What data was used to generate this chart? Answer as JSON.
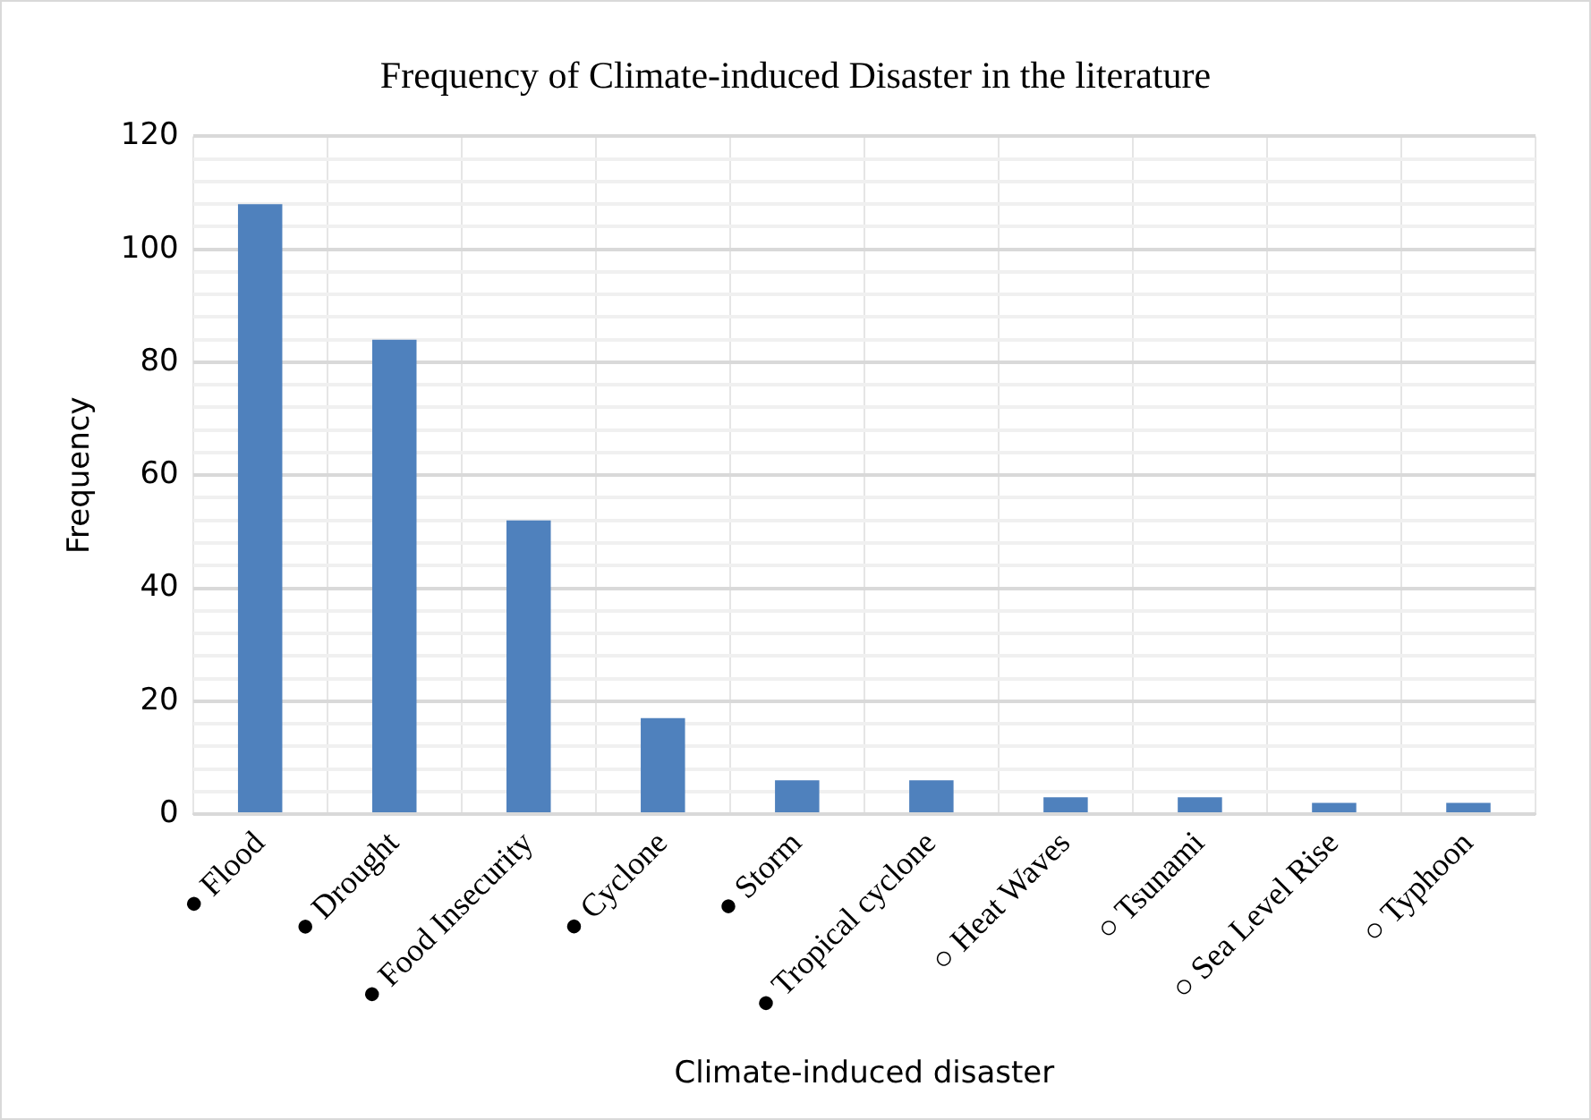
{
  "chart_data": {
    "type": "bar",
    "title": "Frequency of Climate-induced Disaster in the literature",
    "xlabel": "Climate-induced disaster",
    "ylabel": "Frequency",
    "categories": [
      "● Flood",
      "● Drought",
      "● Food Insecurity",
      "● Cyclone",
      "● Storm",
      "● Tropical cyclone",
      "○ Heat Waves",
      "○ Tsunami",
      "○ Sea Level Rise",
      "○ Typhoon"
    ],
    "values": [
      108,
      84,
      52,
      17,
      6,
      6,
      3,
      3,
      2,
      2
    ],
    "color": "#4f81bd",
    "ylim": [
      0,
      120
    ],
    "yticks": [
      0,
      {
        "value": 4,
        "label": null
      },
      {
        "value": 8,
        "label": null
      },
      {
        "value": 12,
        "label": null
      },
      {
        "value": 16,
        "label": null
      },
      20,
      {
        "value": 24,
        "label": null
      },
      {
        "value": 28,
        "label": null
      },
      {
        "value": 32,
        "label": null
      },
      {
        "value": 36,
        "label": null
      },
      40,
      {
        "value": 44,
        "label": null
      },
      {
        "value": 48,
        "label": null
      },
      {
        "value": 52,
        "label": null
      },
      {
        "value": 56,
        "label": null
      },
      60,
      {
        "value": 64,
        "label": null
      },
      {
        "value": 68,
        "label": null
      },
      {
        "value": 72,
        "label": null
      },
      {
        "value": 76,
        "label": null
      },
      80,
      {
        "value": 84,
        "label": null
      },
      {
        "value": 88,
        "label": null
      },
      {
        "value": 92,
        "label": null
      },
      {
        "value": 96,
        "label": null
      },
      100,
      {
        "value": 104,
        "label": null
      },
      {
        "value": 108,
        "label": null
      },
      {
        "value": 112,
        "label": null
      },
      {
        "value": 116,
        "label": null
      },
      120
    ],
    "grid": true,
    "legend": false
  }
}
